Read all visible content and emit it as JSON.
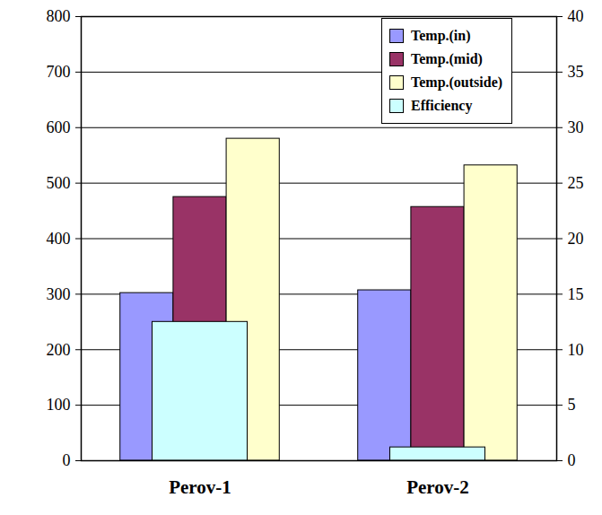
{
  "chart_data": {
    "type": "bar",
    "categories": [
      "Perov-1",
      "Perov-2"
    ],
    "series": [
      {
        "name": "Temp.(in)",
        "color": "#9999ff",
        "values": [
          302,
          307
        ]
      },
      {
        "name": "Temp.(mid)",
        "color": "#993366",
        "values": [
          475,
          457
        ]
      },
      {
        "name": "Temp.(outside)",
        "color": "#ffffcc",
        "values": [
          580,
          532
        ]
      },
      {
        "name": "Efficiency",
        "color": "#ccffff",
        "values": [
          12.5,
          1.2
        ],
        "axis": "y2"
      }
    ],
    "ylim": [
      0,
      800
    ],
    "yticks": [
      0,
      100,
      200,
      300,
      400,
      500,
      600,
      700,
      800
    ],
    "y2lim": [
      0,
      40
    ],
    "y2ticks": [
      0,
      5,
      10,
      15,
      20,
      25,
      30,
      35,
      40
    ],
    "grid": true,
    "legend": "top-right"
  }
}
